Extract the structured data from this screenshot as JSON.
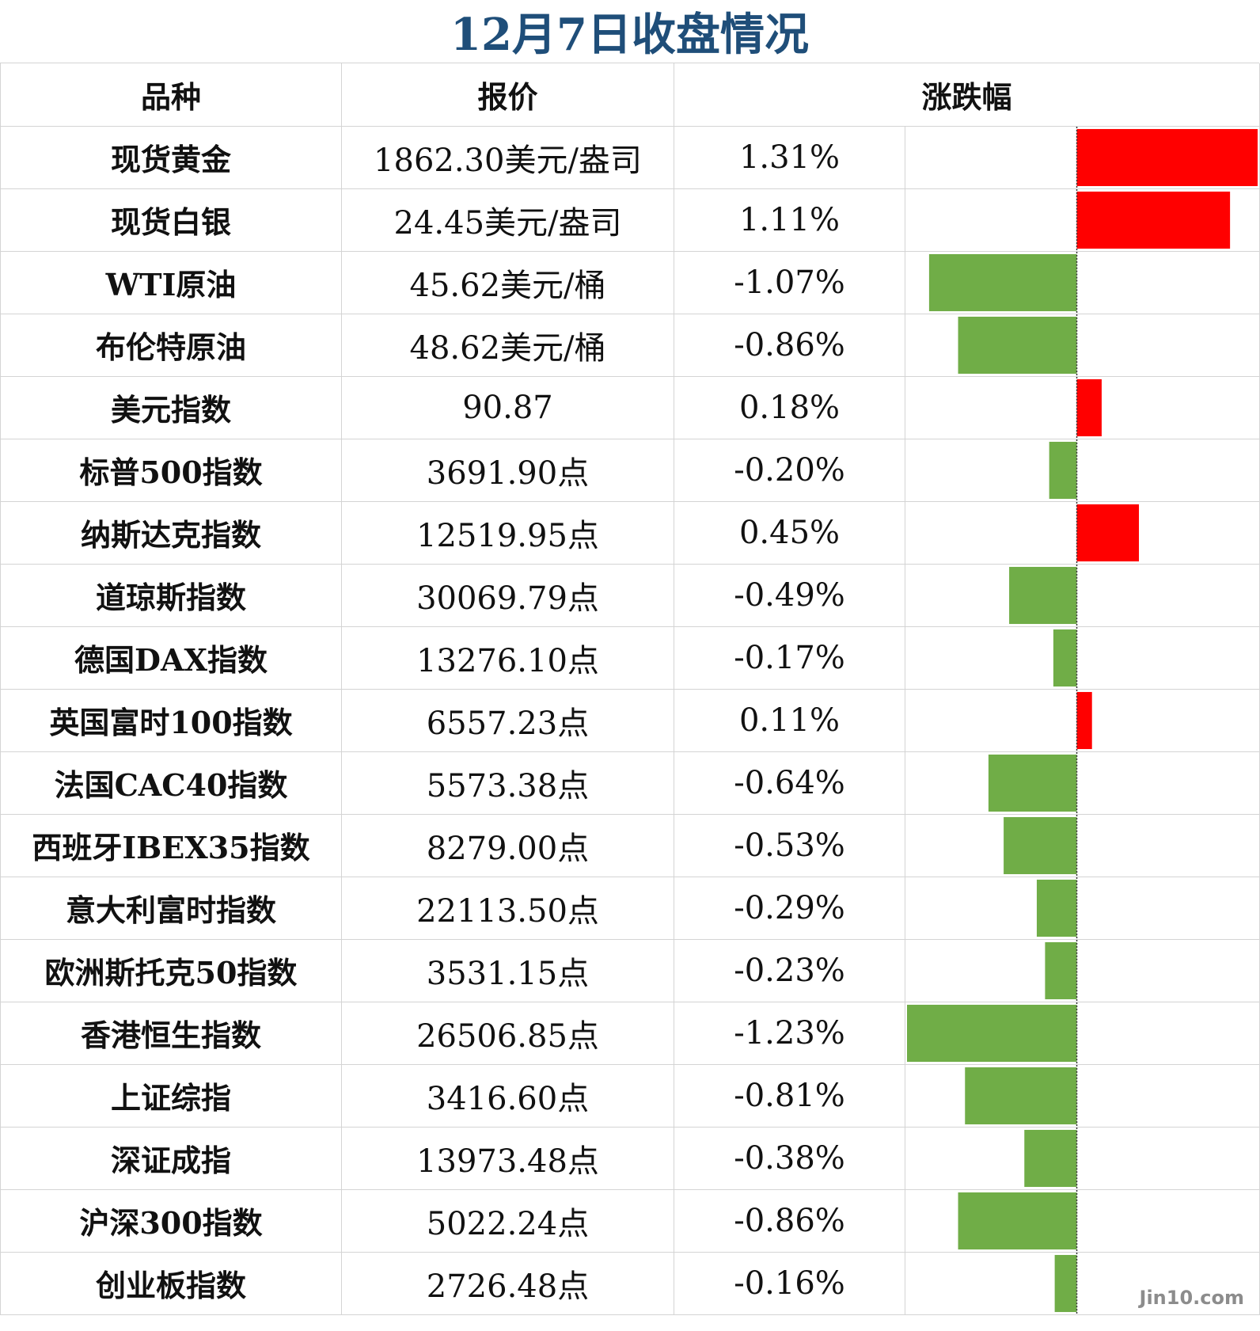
{
  "title": "12月7日收盘情况",
  "headers": {
    "name": "品种",
    "price": "报价",
    "change": "涨跌幅"
  },
  "watermark": "Jin10.com",
  "colors": {
    "up": "#ff0000",
    "down": "#70ad47",
    "title": "#1f4e79"
  },
  "chart_data": {
    "type": "bar",
    "orientation": "horizontal",
    "title": "12月7日收盘情况",
    "categories": [
      "现货黄金",
      "现货白银",
      "WTI原油",
      "布伦特原油",
      "美元指数",
      "标普500指数",
      "纳斯达克指数",
      "道琼斯指数",
      "德国DAX指数",
      "英国富时100指数",
      "法国CAC40指数",
      "西班牙IBEX35指数",
      "意大利富时指数",
      "欧洲斯托克50指数",
      "香港恒生指数",
      "上证综指",
      "深证成指",
      "沪深300指数",
      "创业板指数"
    ],
    "series": [
      {
        "values": [
          1.31,
          1.11,
          -1.07,
          -0.86,
          0.18,
          -0.2,
          0.45,
          -0.49,
          -0.17,
          0.11,
          -0.64,
          -0.53,
          -0.29,
          -0.23,
          -1.23,
          -0.81,
          -0.38,
          -0.86,
          -0.16
        ]
      }
    ],
    "xlim": [
      -1.23,
      1.31
    ],
    "rows": [
      {
        "name": "现货黄金",
        "price": "1862.30美元/盎司",
        "pct": "1.31%",
        "value": 1.31
      },
      {
        "name": "现货白银",
        "price": "24.45美元/盎司",
        "pct": "1.11%",
        "value": 1.11
      },
      {
        "name": "WTI原油",
        "price": "45.62美元/桶",
        "pct": "-1.07%",
        "value": -1.07
      },
      {
        "name": "布伦特原油",
        "price": "48.62美元/桶",
        "pct": "-0.86%",
        "value": -0.86
      },
      {
        "name": "美元指数",
        "price": "90.87",
        "pct": "0.18%",
        "value": 0.18
      },
      {
        "name": "标普500指数",
        "price": "3691.90点",
        "pct": "-0.20%",
        "value": -0.2
      },
      {
        "name": "纳斯达克指数",
        "price": "12519.95点",
        "pct": "0.45%",
        "value": 0.45
      },
      {
        "name": "道琼斯指数",
        "price": "30069.79点",
        "pct": "-0.49%",
        "value": -0.49
      },
      {
        "name": "德国DAX指数",
        "price": "13276.10点",
        "pct": "-0.17%",
        "value": -0.17
      },
      {
        "name": "英国富时100指数",
        "price": "6557.23点",
        "pct": "0.11%",
        "value": 0.11
      },
      {
        "name": "法国CAC40指数",
        "price": "5573.38点",
        "pct": "-0.64%",
        "value": -0.64
      },
      {
        "name": "西班牙IBEX35指数",
        "price": "8279.00点",
        "pct": "-0.53%",
        "value": -0.53
      },
      {
        "name": "意大利富时指数",
        "price": "22113.50点",
        "pct": "-0.29%",
        "value": -0.29
      },
      {
        "name": "欧洲斯托克50指数",
        "price": "3531.15点",
        "pct": "-0.23%",
        "value": -0.23
      },
      {
        "name": "香港恒生指数",
        "price": "26506.85点",
        "pct": "-1.23%",
        "value": -1.23
      },
      {
        "name": "上证综指",
        "price": "3416.60点",
        "pct": "-0.81%",
        "value": -0.81
      },
      {
        "name": "深证成指",
        "price": "13973.48点",
        "pct": "-0.38%",
        "value": -0.38
      },
      {
        "name": "沪深300指数",
        "price": "5022.24点",
        "pct": "-0.86%",
        "value": -0.86
      },
      {
        "name": "创业板指数",
        "price": "2726.48点",
        "pct": "-0.16%",
        "value": -0.16
      }
    ]
  }
}
